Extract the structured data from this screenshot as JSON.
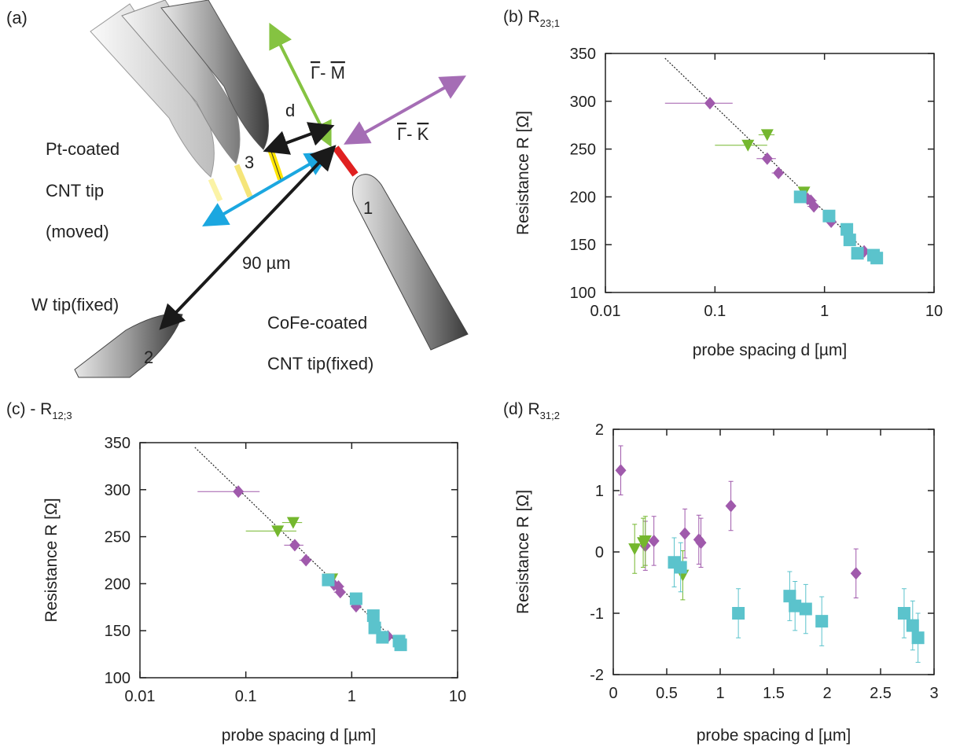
{
  "diagram": {
    "panel": "(a)",
    "d_label": "d",
    "gamma_m": [
      "Γ",
      "- ",
      "M"
    ],
    "gamma_k": [
      "Γ",
      "- ",
      "K"
    ],
    "pt_label": [
      "Pt-coated",
      "CNT tip",
      "(moved)"
    ],
    "distance": "90 µm",
    "w_tip": "W tip(fixed)",
    "cofe_label": [
      "CoFe-coated",
      "CNT tip(fixed)"
    ],
    "probe_numbers": [
      "1",
      "2",
      "3"
    ]
  },
  "chart_data": [
    {
      "type": "scatter",
      "title": "(b) R",
      "title_subscript": "23;1",
      "xlabel": "probe spacing d [µm]",
      "ylabel": "Resistance R  [Ω]",
      "xscale": "log",
      "xlim": [
        0.01,
        10
      ],
      "xticks": [
        0.01,
        0.1,
        1,
        10
      ],
      "ylim": [
        100,
        350
      ],
      "yticks": [
        100,
        150,
        200,
        250,
        300,
        350
      ],
      "fit": {
        "x": [
          0.035,
          3
        ],
        "values": [
          345,
          132
        ]
      },
      "series": [
        {
          "color": "#a05aac",
          "marker": "diamond",
          "x": [
            0.09,
            0.3,
            0.38,
            0.7,
            0.75,
            0.8,
            1.15,
            2.3
          ],
          "values": [
            298,
            240,
            225,
            198,
            196,
            190,
            174,
            143
          ],
          "xerr": [
            0.055,
            0.06,
            0.05,
            null,
            0.1,
            0.1,
            null,
            null
          ]
        },
        {
          "color": "#74b72e",
          "marker": "triangle",
          "x": [
            0.3,
            0.2,
            0.65
          ],
          "values": [
            265,
            254,
            205
          ],
          "xerr": [
            0.05,
            0.1,
            null
          ]
        },
        {
          "color": "#5bc3cc",
          "marker": "square",
          "x": [
            0.6,
            1.1,
            1.6,
            1.7,
            2.0,
            2.8,
            3.0
          ],
          "values": [
            200,
            180,
            166,
            155,
            141,
            139,
            136
          ],
          "xerr": [
            null,
            null,
            null,
            null,
            null,
            null,
            null
          ]
        }
      ]
    },
    {
      "type": "scatter",
      "title": "(c) - R",
      "title_subscript": "12;3",
      "xlabel": "probe spacing d [µm]",
      "ylabel": "Resistance R  [Ω]",
      "xscale": "log",
      "xlim": [
        0.01,
        10
      ],
      "xticks": [
        0.01,
        0.1,
        1,
        10
      ],
      "ylim": [
        100,
        350
      ],
      "yticks": [
        100,
        150,
        200,
        250,
        300,
        350
      ],
      "fit": {
        "x": [
          0.033,
          3
        ],
        "values": [
          345,
          132
        ]
      },
      "series": [
        {
          "color": "#a05aac",
          "marker": "diamond",
          "x": [
            0.085,
            0.29,
            0.37,
            0.68,
            0.75,
            0.78,
            1.1,
            2.2
          ],
          "values": [
            298,
            241,
            225,
            199,
            197,
            191,
            176,
            144
          ],
          "xerr": [
            0.05,
            0.06,
            0.05,
            null,
            0.1,
            0.1,
            null,
            null
          ]
        },
        {
          "color": "#74b72e",
          "marker": "triangle",
          "x": [
            0.28,
            0.2,
            0.65
          ],
          "values": [
            265,
            256,
            205
          ],
          "xerr": [
            0.06,
            0.1,
            null
          ]
        },
        {
          "color": "#5bc3cc",
          "marker": "square",
          "x": [
            0.6,
            1.1,
            1.6,
            1.65,
            1.95,
            2.8,
            2.9
          ],
          "values": [
            204,
            184,
            166,
            153,
            143,
            139,
            135
          ],
          "xerr": [
            null,
            null,
            null,
            null,
            null,
            null,
            null
          ]
        }
      ]
    },
    {
      "type": "scatter",
      "title": "(d) R",
      "title_subscript": "31;2",
      "xlabel": "probe spacing d [µm]",
      "ylabel": "Resistance R  [Ω]",
      "xscale": "linear",
      "xlim": [
        0,
        3
      ],
      "xticks": [
        0,
        0.5,
        1,
        1.5,
        2,
        2.5,
        3
      ],
      "ylim": [
        -2,
        2
      ],
      "yticks": [
        -2,
        -1,
        0,
        1,
        2
      ],
      "series": [
        {
          "color": "#a05aac",
          "marker": "diamond",
          "x": [
            0.07,
            0.3,
            0.38,
            0.67,
            0.8,
            0.82,
            1.1,
            2.27
          ],
          "values": [
            1.33,
            0.1,
            0.18,
            0.3,
            0.2,
            0.15,
            0.75,
            -0.35
          ],
          "yerr": [
            0.4,
            0.4,
            0.4,
            0.4,
            0.4,
            0.4,
            0.4,
            0.4
          ]
        },
        {
          "color": "#74b72e",
          "marker": "triangle",
          "x": [
            0.2,
            0.28,
            0.3,
            0.65
          ],
          "values": [
            0.05,
            0.15,
            0.18,
            -0.38
          ],
          "yerr": [
            0.4,
            0.4,
            0.4,
            0.4
          ]
        },
        {
          "color": "#5bc3cc",
          "marker": "square",
          "x": [
            0.57,
            0.63,
            1.17,
            1.65,
            1.7,
            1.8,
            1.95,
            2.72,
            2.8,
            2.85
          ],
          "values": [
            -0.17,
            -0.25,
            -1.0,
            -0.72,
            -0.88,
            -0.93,
            -1.13,
            -1.0,
            -1.2,
            -1.4
          ],
          "yerr": [
            0.4,
            0.4,
            0.4,
            0.4,
            0.4,
            0.4,
            0.4,
            0.4,
            0.4,
            0.4
          ]
        }
      ]
    }
  ]
}
